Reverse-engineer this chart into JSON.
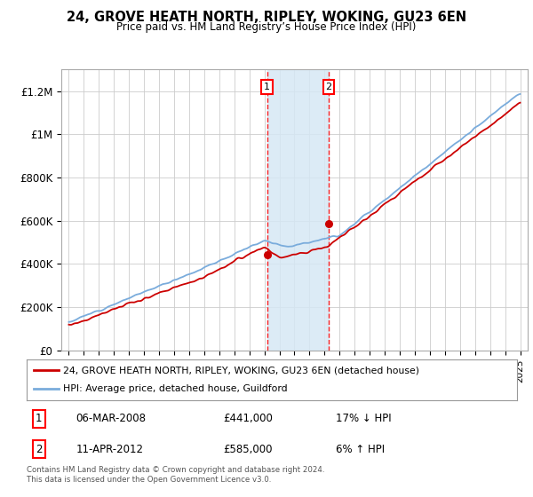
{
  "title": "24, GROVE HEATH NORTH, RIPLEY, WOKING, GU23 6EN",
  "subtitle": "Price paid vs. HM Land Registry’s House Price Index (HPI)",
  "ylim": [
    0,
    1300000
  ],
  "yticks": [
    0,
    200000,
    400000,
    600000,
    800000,
    1000000,
    1200000
  ],
  "ytick_labels": [
    "£0",
    "£200K",
    "£400K",
    "£600K",
    "£800K",
    "£1M",
    "£1.2M"
  ],
  "sale1_year": 2008.18,
  "sale1_price": 441000,
  "sale2_year": 2012.28,
  "sale2_price": 585000,
  "line1_color": "#cc0000",
  "line2_color": "#7aacdc",
  "shade_color": "#d6e8f5",
  "grid_color": "#cccccc",
  "legend1_label": "24, GROVE HEATH NORTH, RIPLEY, WOKING, GU23 6EN (detached house)",
  "legend2_label": "HPI: Average price, detached house, Guildford",
  "table_row1": [
    "1",
    "06-MAR-2008",
    "£441,000",
    "17% ↓ HPI"
  ],
  "table_row2": [
    "2",
    "11-APR-2012",
    "£585,000",
    "6% ↑ HPI"
  ],
  "footnote": "Contains HM Land Registry data © Crown copyright and database right 2024.\nThis data is licensed under the Open Government Licence v3.0."
}
